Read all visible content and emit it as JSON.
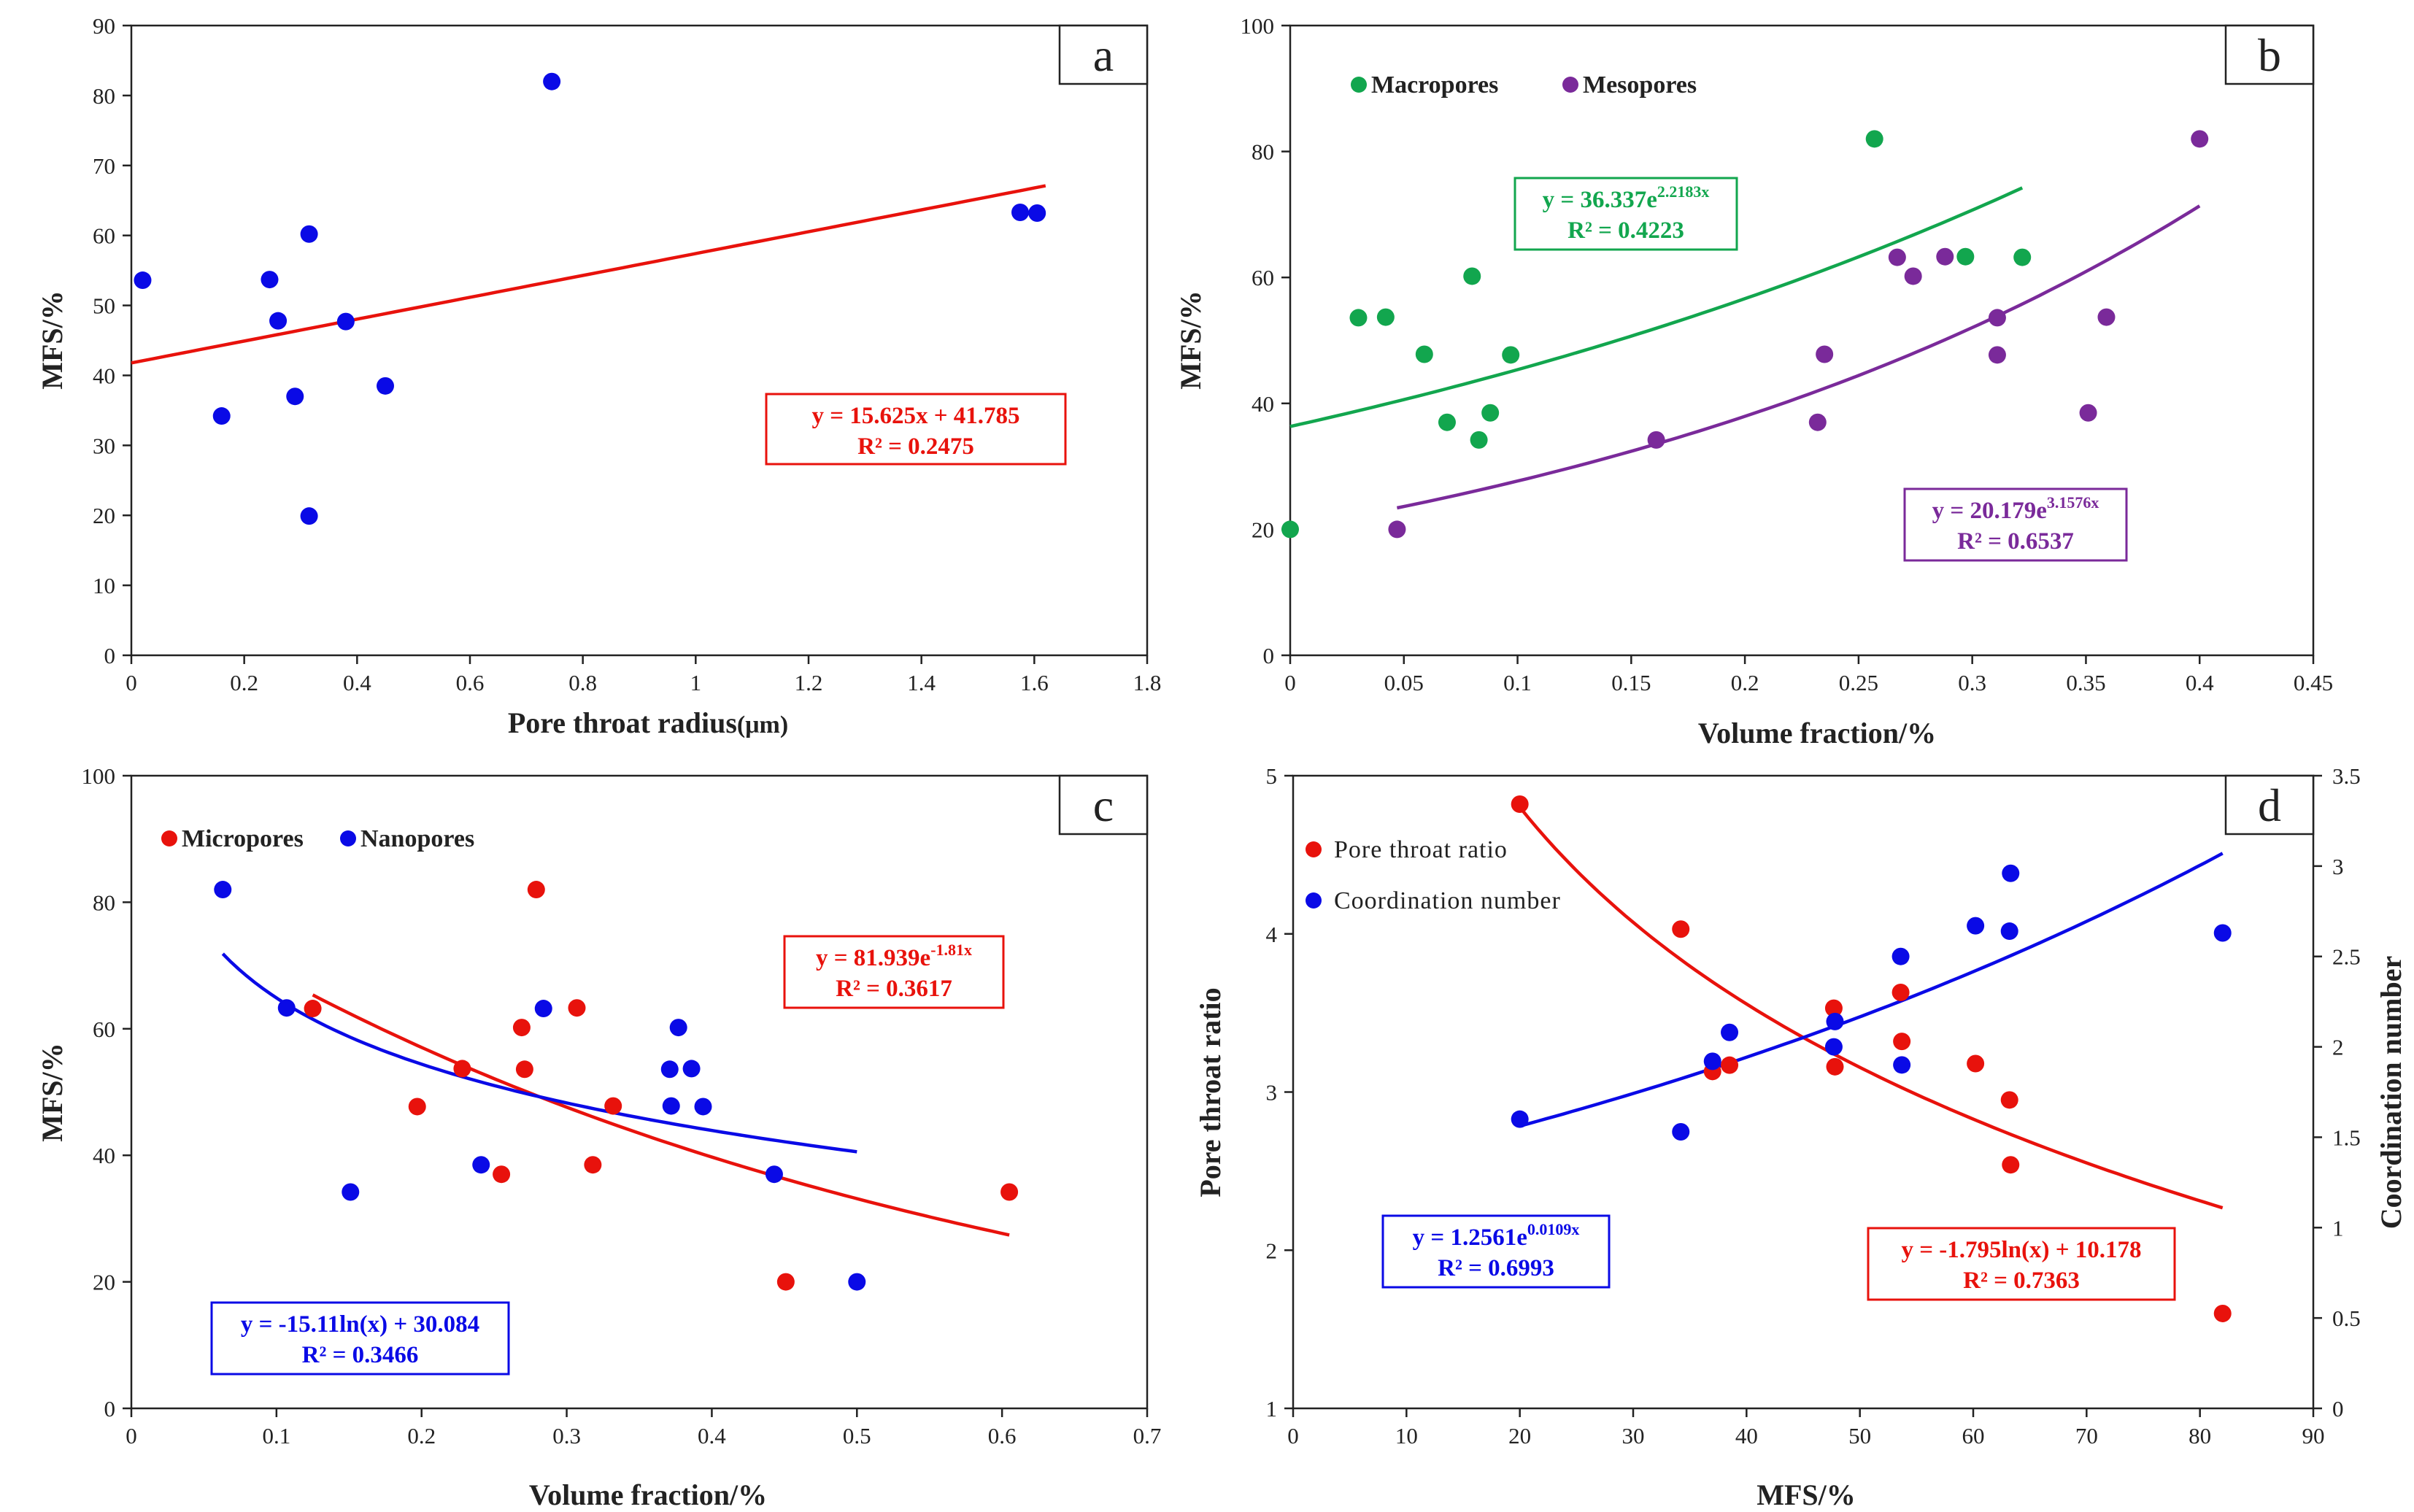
{
  "chart_data": [
    {
      "panel": "a",
      "type": "scatter",
      "title": "a",
      "xlabel": "Pore throat radius",
      "xlabel_unit": "(μm)",
      "ylabel": "MFS/%",
      "xlim": [
        0,
        1.8
      ],
      "ylim": [
        0,
        90
      ],
      "xticks": [
        "0",
        "0.2",
        "0.4",
        "0.6",
        "0.8",
        "1",
        "1.2",
        "1.4",
        "1.6",
        "1.8"
      ],
      "yticks": [
        "0",
        "10",
        "20",
        "30",
        "40",
        "50",
        "60",
        "70",
        "80",
        "90"
      ],
      "series": [
        {
          "name": "MFS",
          "color": "#0a0ae6",
          "points": [
            [
              0.02,
              53.6
            ],
            [
              0.16,
              34.2
            ],
            [
              0.245,
              53.7
            ],
            [
              0.26,
              47.8
            ],
            [
              0.29,
              37.0
            ],
            [
              0.315,
              60.2
            ],
            [
              0.315,
              19.9
            ],
            [
              0.38,
              47.7
            ],
            [
              0.45,
              38.5
            ],
            [
              0.745,
              82.0
            ],
            [
              1.575,
              63.3
            ],
            [
              1.605,
              63.2
            ]
          ]
        }
      ],
      "fits": [
        {
          "type": "linear",
          "color": "#e8120c",
          "a": 15.625,
          "b": 41.785,
          "x_range": [
            0,
            1.62
          ],
          "eqn": "y = 15.625x + 41.785",
          "r2": "R² = 0.2475"
        }
      ]
    },
    {
      "panel": "b",
      "type": "scatter",
      "title": "b",
      "xlabel": "Volume fraction/%",
      "ylabel": "MFS/%",
      "xlim": [
        0,
        0.45
      ],
      "ylim": [
        0,
        100
      ],
      "xticks": [
        "0",
        "0.05",
        "0.1",
        "0.15",
        "0.2",
        "0.25",
        "0.3",
        "0.35",
        "0.4",
        "0.45"
      ],
      "yticks": [
        "0",
        "20",
        "40",
        "60",
        "80",
        "100"
      ],
      "legend": [
        "Macropores",
        "Mesopores"
      ],
      "series": [
        {
          "name": "Macropores",
          "color": "#12a64e",
          "points": [
            [
              0.0,
              20.0
            ],
            [
              0.03,
              53.6
            ],
            [
              0.042,
              53.7
            ],
            [
              0.059,
              47.8
            ],
            [
              0.069,
              37.0
            ],
            [
              0.08,
              60.2
            ],
            [
              0.083,
              34.2
            ],
            [
              0.088,
              38.5
            ],
            [
              0.097,
              47.7
            ],
            [
              0.257,
              82.0
            ],
            [
              0.297,
              63.3
            ],
            [
              0.322,
              63.2
            ]
          ]
        },
        {
          "name": "Mesopores",
          "color": "#7a2a9a",
          "points": [
            [
              0.047,
              20.0
            ],
            [
              0.161,
              34.2
            ],
            [
              0.232,
              37.0
            ],
            [
              0.235,
              47.8
            ],
            [
              0.267,
              63.2
            ],
            [
              0.274,
              60.2
            ],
            [
              0.288,
              63.3
            ],
            [
              0.311,
              53.6
            ],
            [
              0.311,
              47.7
            ],
            [
              0.351,
              38.5
            ],
            [
              0.359,
              53.7
            ],
            [
              0.4,
              82.0
            ]
          ]
        }
      ],
      "fits": [
        {
          "type": "exp",
          "color": "#12a64e",
          "a": 36.337,
          "b": 2.2183,
          "x_range": [
            0,
            0.322
          ],
          "eqn_base": "y = 36.337e",
          "eqn_exp": "2.2183x",
          "r2": "R² = 0.4223"
        },
        {
          "type": "exp",
          "color": "#7a2a9a",
          "a": 20.179,
          "b": 3.1576,
          "x_range": [
            0.047,
            0.4
          ],
          "eqn_base": "y = 20.179e",
          "eqn_exp": "3.1576x",
          "r2": "R² = 0.6537"
        }
      ]
    },
    {
      "panel": "c",
      "type": "scatter",
      "title": "c",
      "xlabel": "Volume fraction/%",
      "ylabel": "MFS/%",
      "xlim": [
        0,
        0.7
      ],
      "ylim": [
        0,
        100
      ],
      "xticks": [
        "0",
        "0.1",
        "0.2",
        "0.3",
        "0.4",
        "0.5",
        "0.6",
        "0.7"
      ],
      "yticks": [
        "0",
        "20",
        "40",
        "60",
        "80",
        "100"
      ],
      "legend": [
        "Micropores",
        "Nanopores"
      ],
      "series": [
        {
          "name": "Micropores",
          "color": "#e8120c",
          "points": [
            [
              0.125,
              63.2
            ],
            [
              0.197,
              47.7
            ],
            [
              0.228,
              53.7
            ],
            [
              0.255,
              37.0
            ],
            [
              0.269,
              60.2
            ],
            [
              0.271,
              53.6
            ],
            [
              0.279,
              82.0
            ],
            [
              0.307,
              63.3
            ],
            [
              0.318,
              38.5
            ],
            [
              0.332,
              47.8
            ],
            [
              0.451,
              20.0
            ],
            [
              0.605,
              34.2
            ]
          ]
        },
        {
          "name": "Nanopores",
          "color": "#0a0ae6",
          "points": [
            [
              0.063,
              82.0
            ],
            [
              0.107,
              63.3
            ],
            [
              0.151,
              34.2
            ],
            [
              0.241,
              38.5
            ],
            [
              0.284,
              63.2
            ],
            [
              0.371,
              53.6
            ],
            [
              0.372,
              47.8
            ],
            [
              0.377,
              60.2
            ],
            [
              0.386,
              53.7
            ],
            [
              0.394,
              47.7
            ],
            [
              0.443,
              37.0
            ],
            [
              0.5,
              20.0
            ]
          ]
        }
      ],
      "fits": [
        {
          "type": "exp",
          "color": "#e8120c",
          "a": 81.939,
          "b": -1.81,
          "x_range": [
            0.125,
            0.605
          ],
          "eqn_base": "y = 81.939e",
          "eqn_exp": "-1.81x",
          "r2": "R² = 0.3617"
        },
        {
          "type": "log",
          "color": "#0a0ae6",
          "a": -15.11,
          "b": 30.084,
          "x_range": [
            0.063,
            0.5
          ],
          "eqn": "y = -15.11ln(x) + 30.084",
          "r2": "R² = 0.3466"
        }
      ]
    },
    {
      "panel": "d",
      "type": "scatter",
      "title": "d",
      "xlabel": "MFS/%",
      "ylabel": "Pore throat ratio",
      "y2label": "Coordination number",
      "xlim": [
        0,
        90
      ],
      "ylim": [
        1,
        5
      ],
      "y2lim": [
        0,
        3.5
      ],
      "xticks": [
        "0",
        "10",
        "20",
        "30",
        "40",
        "50",
        "60",
        "70",
        "80",
        "90"
      ],
      "yticks": [
        "1",
        "2",
        "3",
        "4",
        "5"
      ],
      "y2ticks": [
        "0",
        "0.5",
        "1",
        "1.5",
        "2",
        "2.5",
        "3",
        "3.5"
      ],
      "legend": [
        "Pore throat ratio",
        "Coordination number"
      ],
      "series": [
        {
          "name": "Pore throat ratio",
          "axis": "left",
          "color": "#e8120c",
          "points": [
            [
              20.0,
              4.82
            ],
            [
              34.2,
              4.03
            ],
            [
              37.0,
              3.13
            ],
            [
              38.5,
              3.17
            ],
            [
              47.7,
              3.53
            ],
            [
              47.8,
              3.16
            ],
            [
              53.6,
              3.63
            ],
            [
              53.7,
              3.32
            ],
            [
              60.2,
              3.18
            ],
            [
              63.2,
              2.95
            ],
            [
              63.3,
              2.54
            ],
            [
              82.0,
              1.6
            ]
          ]
        },
        {
          "name": "Coordination number",
          "axis": "right",
          "color": "#0a0ae6",
          "points": [
            [
              20.0,
              1.6
            ],
            [
              34.2,
              1.53
            ],
            [
              37.0,
              1.92
            ],
            [
              38.5,
              2.08
            ],
            [
              47.7,
              2.0
            ],
            [
              47.8,
              2.14
            ],
            [
              53.6,
              2.5
            ],
            [
              53.7,
              1.9
            ],
            [
              60.2,
              2.67
            ],
            [
              63.2,
              2.64
            ],
            [
              63.3,
              2.96
            ],
            [
              82.0,
              2.63
            ]
          ]
        }
      ],
      "fits": [
        {
          "type": "log",
          "axis": "left",
          "color": "#e8120c",
          "a": -1.795,
          "b": 10.178,
          "x_range": [
            20,
            82
          ],
          "eqn": "y = -1.795ln(x) + 10.178",
          "r2": "R² = 0.7363"
        },
        {
          "type": "exp",
          "axis": "right",
          "color": "#0a0ae6",
          "a": 1.2561,
          "b": 0.0109,
          "x_range": [
            20,
            82
          ],
          "eqn_base": "y = 1.2561e",
          "eqn_exp": "0.0109x",
          "r2": "R² = 0.6993"
        }
      ]
    }
  ]
}
